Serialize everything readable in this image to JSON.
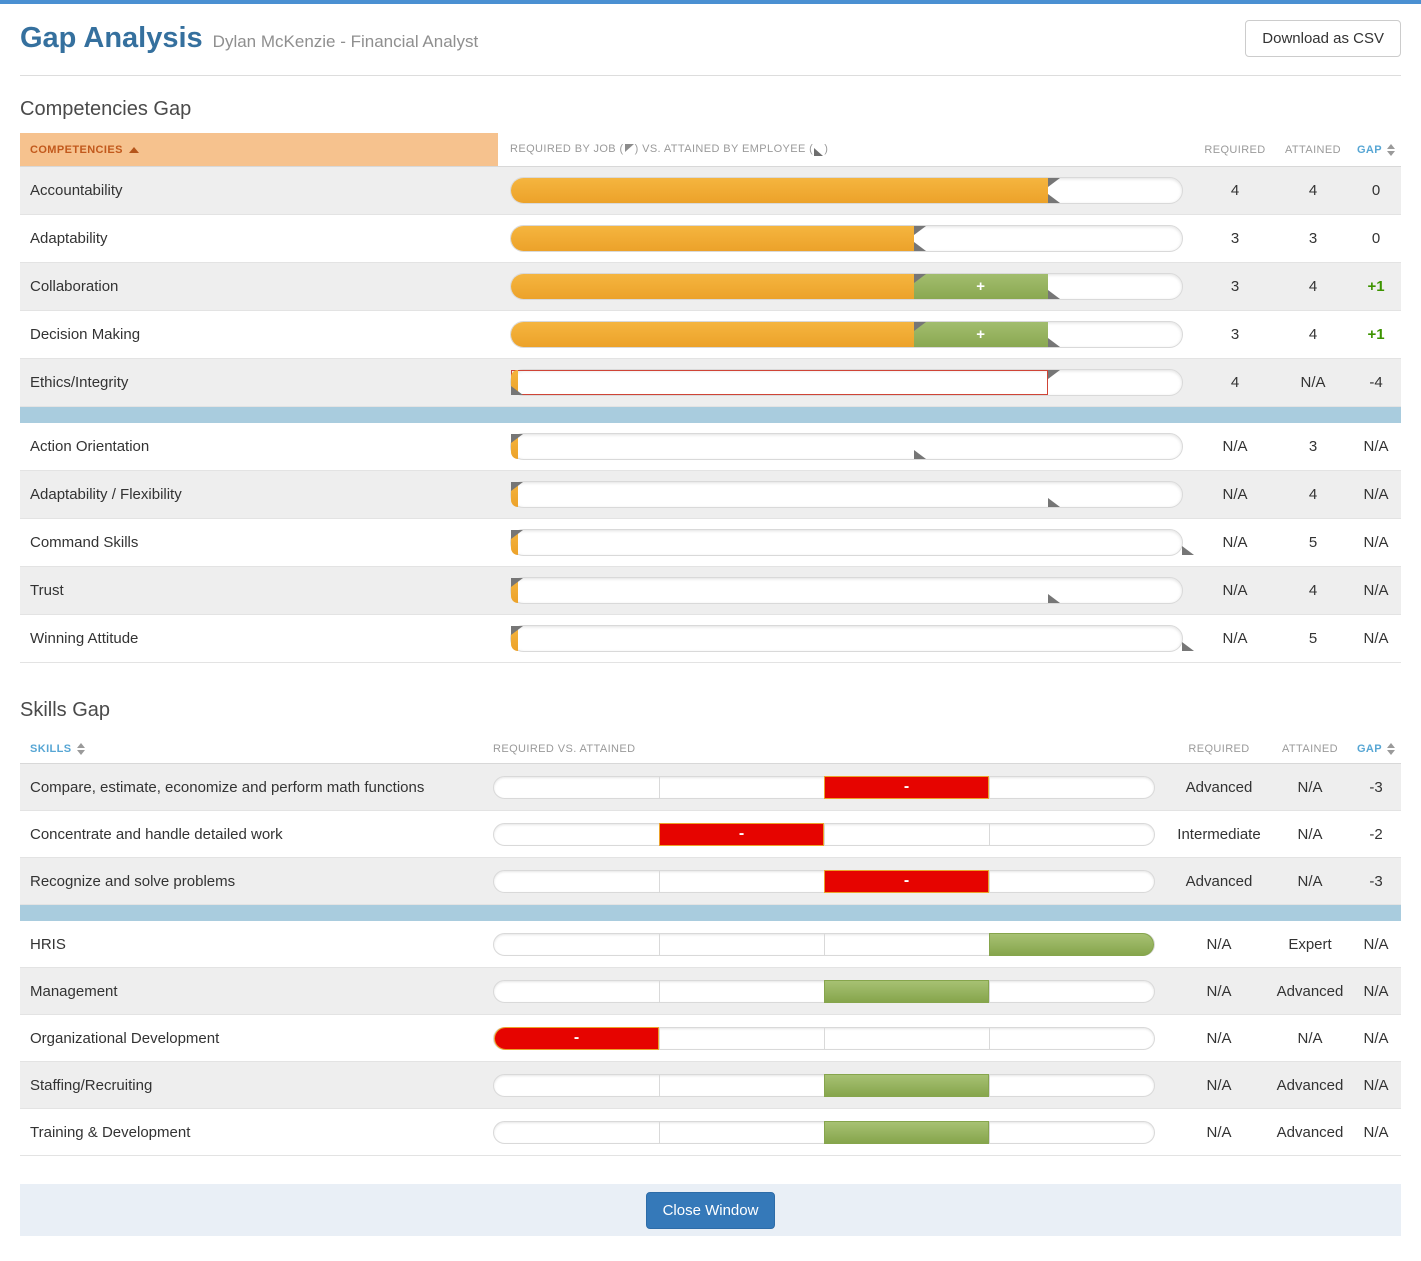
{
  "header": {
    "title": "Gap Analysis",
    "subtitle": "Dylan McKenzie - Financial Analyst",
    "download_button": "Download as CSV"
  },
  "competencies_section": {
    "title": "Competencies Gap",
    "scale_max": 5,
    "header": {
      "name": "COMPETENCIES",
      "bar_part1": "REQUIRED BY JOB (",
      "bar_part2": ") VS. ATTAINED BY EMPLOYEE (",
      "bar_part3": ")",
      "required": "REQUIRED",
      "attained": "ATTAINED",
      "gap": "GAP"
    },
    "rows": [
      {
        "name": "Accountability",
        "required": "4",
        "attained": "4",
        "gap": "0",
        "bar": {
          "orange_pct": 80,
          "req_flag_pct": 80,
          "att_flag_pct": 80
        }
      },
      {
        "name": "Adaptability",
        "required": "3",
        "attained": "3",
        "gap": "0",
        "bar": {
          "orange_pct": 60,
          "req_flag_pct": 60,
          "att_flag_pct": 60
        }
      },
      {
        "name": "Collaboration",
        "required": "3",
        "attained": "4",
        "gap": "+1",
        "bar": {
          "orange_pct": 60,
          "green_from": 60,
          "green_to": 80,
          "green_sign": "+",
          "req_flag_pct": 60,
          "att_flag_pct": 80
        }
      },
      {
        "name": "Decision Making",
        "required": "3",
        "attained": "4",
        "gap": "+1",
        "bar": {
          "orange_pct": 60,
          "green_from": 60,
          "green_to": 80,
          "green_sign": "+",
          "req_flag_pct": 60,
          "att_flag_pct": 80
        }
      },
      {
        "name": "Ethics/Integrity",
        "required": "4",
        "attained": "N/A",
        "gap": "-4",
        "bar": {
          "orange_pct": 0,
          "red_outline_pct": 80,
          "req_flag_pct": 80,
          "att_flag_pct": 0
        }
      },
      {
        "separator": true
      },
      {
        "name": "Action Orientation",
        "required": "N/A",
        "attained": "3",
        "gap": "N/A",
        "bar": {
          "orange_pct": 0,
          "req_flag_pct": 0,
          "att_flag_pct": 60
        }
      },
      {
        "name": "Adaptability / Flexibility",
        "required": "N/A",
        "attained": "4",
        "gap": "N/A",
        "bar": {
          "orange_pct": 0,
          "req_flag_pct": 0,
          "att_flag_pct": 80
        }
      },
      {
        "name": "Command Skills",
        "required": "N/A",
        "attained": "5",
        "gap": "N/A",
        "bar": {
          "orange_pct": 0,
          "req_flag_pct": 0,
          "att_flag_pct": 100
        }
      },
      {
        "name": "Trust",
        "required": "N/A",
        "attained": "4",
        "gap": "N/A",
        "bar": {
          "orange_pct": 0,
          "req_flag_pct": 0,
          "att_flag_pct": 80
        }
      },
      {
        "name": "Winning Attitude",
        "required": "N/A",
        "attained": "5",
        "gap": "N/A",
        "bar": {
          "orange_pct": 0,
          "req_flag_pct": 0,
          "att_flag_pct": 100
        }
      }
    ]
  },
  "skills_section": {
    "title": "Skills Gap",
    "segments": 4,
    "header": {
      "name": "SKILLS",
      "bar": "REQUIRED VS. ATTAINED",
      "required": "REQUIRED",
      "attained": "ATTAINED",
      "gap": "GAP"
    },
    "rows": [
      {
        "name": "Compare, estimate, economize and perform math functions",
        "required": "Advanced",
        "attained": "N/A",
        "gap": "-3",
        "block": {
          "color": "red",
          "from": 50,
          "to": 75,
          "sign": "-"
        }
      },
      {
        "name": "Concentrate and handle detailed work",
        "required": "Intermediate",
        "attained": "N/A",
        "gap": "-2",
        "block": {
          "color": "red",
          "from": 25,
          "to": 50,
          "sign": "-"
        }
      },
      {
        "name": "Recognize and solve problems",
        "required": "Advanced",
        "attained": "N/A",
        "gap": "-3",
        "block": {
          "color": "red",
          "from": 50,
          "to": 75,
          "sign": "-"
        }
      },
      {
        "separator": true
      },
      {
        "name": "HRIS",
        "required": "N/A",
        "attained": "Expert",
        "gap": "N/A",
        "block": {
          "color": "green",
          "from": 75,
          "to": 100,
          "sign": ""
        }
      },
      {
        "name": "Management",
        "required": "N/A",
        "attained": "Advanced",
        "gap": "N/A",
        "block": {
          "color": "green",
          "from": 50,
          "to": 75,
          "sign": ""
        }
      },
      {
        "name": "Organizational Development",
        "required": "N/A",
        "attained": "N/A",
        "gap": "N/A",
        "block": {
          "color": "red",
          "from": 0,
          "to": 25,
          "sign": "-"
        }
      },
      {
        "name": "Staffing/Recruiting",
        "required": "N/A",
        "attained": "Advanced",
        "gap": "N/A",
        "block": {
          "color": "green",
          "from": 50,
          "to": 75,
          "sign": ""
        }
      },
      {
        "name": "Training & Development",
        "required": "N/A",
        "attained": "Advanced",
        "gap": "N/A",
        "block": {
          "color": "green",
          "from": 50,
          "to": 75,
          "sign": ""
        }
      }
    ]
  },
  "footer": {
    "close_button": "Close Window"
  },
  "colors": {
    "top_bar": "#4a90d2",
    "title_blue": "#35709e",
    "header_orange_bg": "#f6c28e",
    "header_orange_text": "#c2591c",
    "sortable_blue": "#57a6d4",
    "bar_orange": "#eca22a",
    "bar_green": "#8aa851",
    "bar_red": "#e60400",
    "red_outline": "#cf4436",
    "separator_blue": "#a9ccde",
    "gap_positive_green": "#3d9400",
    "footer_bg": "#e9eff6",
    "close_button_blue": "#3579b9"
  }
}
